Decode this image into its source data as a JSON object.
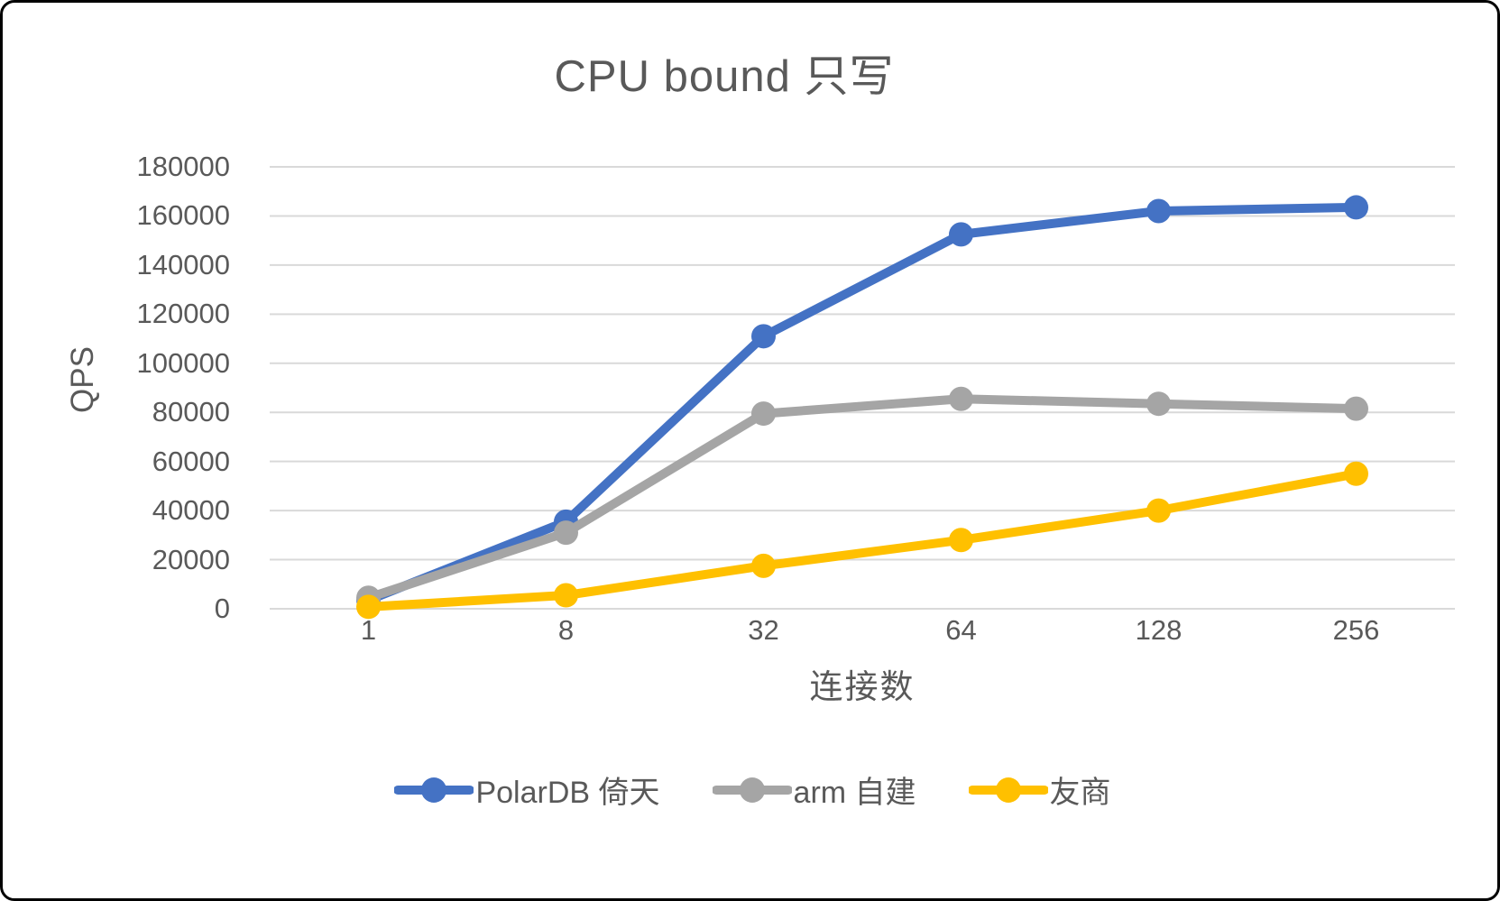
{
  "chart_data": {
    "type": "line",
    "title": "CPU bound 只写",
    "xlabel": "连接数",
    "ylabel": "QPS",
    "categories": [
      "1",
      "8",
      "32",
      "64",
      "128",
      "256"
    ],
    "series": [
      {
        "name": "PolarDB 倚天",
        "color": "#4472C4",
        "values": [
          3500,
          35500,
          111000,
          152500,
          162000,
          163500
        ]
      },
      {
        "name": "arm 自建",
        "color": "#A5A5A5",
        "values": [
          4500,
          31000,
          79500,
          85500,
          83500,
          81500
        ]
      },
      {
        "name": "友商",
        "color": "#FFC000",
        "values": [
          800,
          5500,
          17500,
          28000,
          40000,
          55000
        ]
      }
    ],
    "ylim": [
      0,
      180000
    ],
    "ytick_step": 20000,
    "grid": true,
    "legend_position": "bottom"
  },
  "style": {
    "gridline_color": "#D9D9D9",
    "text_color": "#595959",
    "background": "#FFFFFF",
    "border_color": "#000000"
  }
}
